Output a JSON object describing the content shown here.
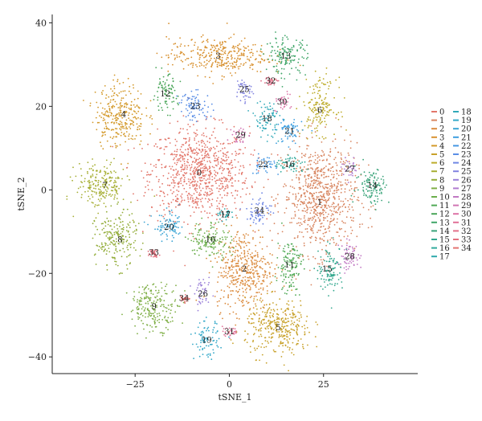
{
  "chart_data": {
    "type": "scatter",
    "title": "",
    "xlabel": "tSNE_1",
    "ylabel": "tSNE_2",
    "xlim": [
      -47,
      50
    ],
    "ylim": [
      -44,
      42
    ],
    "xticks": [
      -25,
      0,
      25
    ],
    "yticks": [
      -40,
      -20,
      0,
      20,
      40
    ],
    "grid": false,
    "legend": {
      "placement": "right",
      "columns": 2,
      "labels": [
        "0",
        "1",
        "2",
        "3",
        "4",
        "5",
        "6",
        "7",
        "8",
        "9",
        "10",
        "11",
        "12",
        "13",
        "14",
        "15",
        "16",
        "17",
        "18",
        "19",
        "20",
        "21",
        "22",
        "23",
        "24",
        "25",
        "26",
        "27",
        "28",
        "29",
        "30",
        "31",
        "32",
        "33",
        "34"
      ]
    },
    "clusters": [
      {
        "name": "0",
        "color": "#e2766a",
        "center": [
          -8,
          4
        ],
        "spread": [
          12,
          10
        ],
        "label_at": [
          -8,
          4
        ]
      },
      {
        "name": "1",
        "color": "#d88661",
        "center": [
          24,
          -2
        ],
        "spread": [
          9,
          12
        ],
        "label_at": [
          24,
          -3
        ]
      },
      {
        "name": "2",
        "color": "#db8b3e",
        "center": [
          4,
          -19
        ],
        "spread": [
          7,
          9
        ],
        "label_at": [
          4,
          -19
        ]
      },
      {
        "name": "3",
        "color": "#d89130",
        "center": [
          -3,
          32
        ],
        "spread": [
          12,
          4
        ],
        "label_at": [
          -3,
          32
        ]
      },
      {
        "name": "4",
        "color": "#d3992a",
        "center": [
          -29,
          18
        ],
        "spread": [
          6,
          7
        ],
        "label_at": [
          -28,
          18
        ]
      },
      {
        "name": "5",
        "color": "#c8a12a",
        "center": [
          13,
          -33
        ],
        "spread": [
          8,
          6
        ],
        "label_at": [
          13,
          -33
        ]
      },
      {
        "name": "6",
        "color": "#bdac2a",
        "center": [
          24,
          20
        ],
        "spread": [
          4,
          6
        ],
        "label_at": [
          24,
          19
        ]
      },
      {
        "name": "7",
        "color": "#a6ae33",
        "center": [
          -34,
          1
        ],
        "spread": [
          6,
          5
        ],
        "label_at": [
          -33,
          1
        ]
      },
      {
        "name": "8",
        "color": "#93ad3a",
        "center": [
          -30,
          -12
        ],
        "spread": [
          5,
          6
        ],
        "label_at": [
          -29,
          -12
        ]
      },
      {
        "name": "9",
        "color": "#7eae45",
        "center": [
          -20,
          -28
        ],
        "spread": [
          6,
          5
        ],
        "label_at": [
          -20,
          -28
        ]
      },
      {
        "name": "10",
        "color": "#6bae4c",
        "center": [
          -5,
          -12
        ],
        "spread": [
          5,
          4
        ],
        "label_at": [
          -5,
          -12
        ]
      },
      {
        "name": "11",
        "color": "#4fa955",
        "center": [
          16,
          -18
        ],
        "spread": [
          3,
          6
        ],
        "label_at": [
          16,
          -18
        ]
      },
      {
        "name": "12",
        "color": "#49a558",
        "center": [
          -17,
          23
        ],
        "spread": [
          3,
          4
        ],
        "label_at": [
          -17,
          23
        ]
      },
      {
        "name": "13",
        "color": "#3fa568",
        "center": [
          15,
          32
        ],
        "spread": [
          5,
          4
        ],
        "label_at": [
          15,
          32
        ]
      },
      {
        "name": "14",
        "color": "#3aa47a",
        "center": [
          38,
          1
        ],
        "spread": [
          4,
          4
        ],
        "label_at": [
          38,
          1
        ]
      },
      {
        "name": "15",
        "color": "#33a88e",
        "center": [
          27,
          -19
        ],
        "spread": [
          3,
          5
        ],
        "label_at": [
          26,
          -19
        ]
      },
      {
        "name": "16",
        "color": "#31aa9c",
        "center": [
          16,
          6
        ],
        "spread": [
          4,
          2
        ],
        "label_at": [
          16,
          6
        ]
      },
      {
        "name": "17",
        "color": "#2ea8ab",
        "center": [
          -1,
          -6
        ],
        "spread": [
          2,
          1
        ],
        "label_at": [
          -1,
          -6
        ]
      },
      {
        "name": "18",
        "color": "#30a9b8",
        "center": [
          10,
          17
        ],
        "spread": [
          3,
          4
        ],
        "label_at": [
          10,
          17
        ]
      },
      {
        "name": "19",
        "color": "#33a8c8",
        "center": [
          -6,
          -36
        ],
        "spread": [
          3,
          4
        ],
        "label_at": [
          -6,
          -36
        ]
      },
      {
        "name": "20",
        "color": "#3aa4d4",
        "center": [
          -16,
          -9
        ],
        "spread": [
          4,
          3
        ],
        "label_at": [
          -16,
          -9
        ]
      },
      {
        "name": "21",
        "color": "#3d9ee0",
        "center": [
          16,
          14
        ],
        "spread": [
          3,
          3
        ],
        "label_at": [
          16,
          14
        ]
      },
      {
        "name": "22",
        "color": "#4697e3",
        "center": [
          9,
          6
        ],
        "spread": [
          3,
          2
        ],
        "label_at": [
          9,
          6
        ]
      },
      {
        "name": "23",
        "color": "#5a8ee6",
        "center": [
          -9,
          20
        ],
        "spread": [
          4,
          3
        ],
        "label_at": [
          -9,
          20
        ]
      },
      {
        "name": "24",
        "color": "#6f87e4",
        "center": [
          8,
          -5
        ],
        "spread": [
          3,
          3
        ],
        "label_at": [
          8,
          -5
        ]
      },
      {
        "name": "25",
        "color": "#8283e0",
        "center": [
          4,
          24
        ],
        "spread": [
          2,
          3
        ],
        "label_at": [
          4,
          24
        ]
      },
      {
        "name": "26",
        "color": "#9a7fd8",
        "center": [
          -7,
          -25
        ],
        "spread": [
          2,
          3
        ],
        "label_at": [
          -7,
          -25
        ]
      },
      {
        "name": "27",
        "color": "#b07bd0",
        "center": [
          32,
          5
        ],
        "spread": [
          2,
          2
        ],
        "label_at": [
          32,
          5
        ]
      },
      {
        "name": "28",
        "color": "#c178c3",
        "center": [
          32,
          -16
        ],
        "spread": [
          3,
          3
        ],
        "label_at": [
          32,
          -16
        ]
      },
      {
        "name": "29",
        "color": "#d074b3",
        "center": [
          3,
          13
        ],
        "spread": [
          2,
          2
        ],
        "label_at": [
          3,
          13
        ]
      },
      {
        "name": "30",
        "color": "#dc72a6",
        "center": [
          14,
          21
        ],
        "spread": [
          2,
          2
        ],
        "label_at": [
          14,
          21
        ]
      },
      {
        "name": "31",
        "color": "#e17098",
        "center": [
          0,
          -34
        ],
        "spread": [
          3,
          1
        ],
        "label_at": [
          0,
          -34
        ]
      },
      {
        "name": "32",
        "color": "#e2708a",
        "center": [
          11,
          26
        ],
        "spread": [
          2,
          1
        ],
        "label_at": [
          11,
          26
        ]
      },
      {
        "name": "33",
        "color": "#e3717e",
        "center": [
          -20,
          -15
        ],
        "spread": [
          1,
          1
        ],
        "label_at": [
          -20,
          -15
        ]
      },
      {
        "name": "34",
        "color": "#e47472",
        "center": [
          -12,
          -26
        ],
        "spread": [
          1,
          1
        ],
        "label_at": [
          -12,
          -26
        ]
      }
    ]
  }
}
